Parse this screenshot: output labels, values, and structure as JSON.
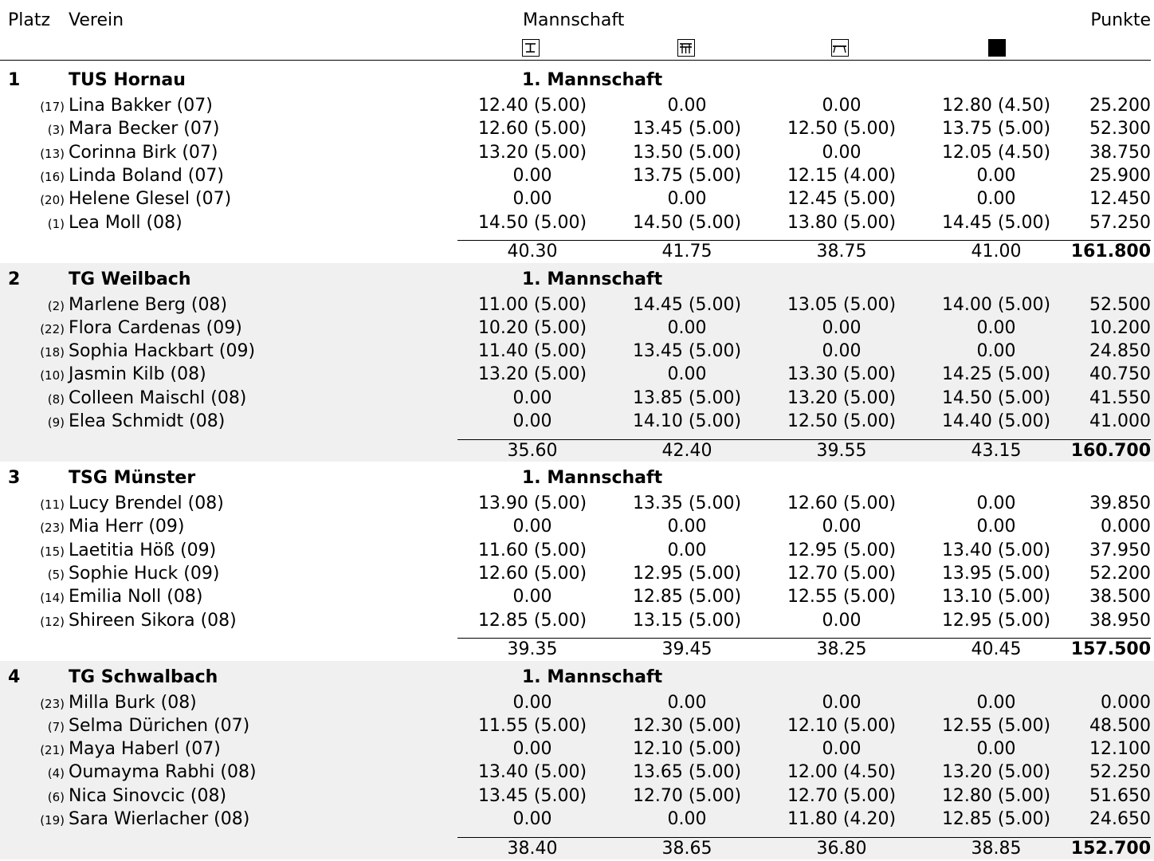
{
  "header": {
    "platz": "Platz",
    "verein": "Verein",
    "mannschaft": "Mannschaft",
    "punkte": "Punkte",
    "apparatus_icons": [
      "vault-icon",
      "bars-icon",
      "beam-icon",
      "floor-icon"
    ]
  },
  "teams": [
    {
      "place": "1",
      "club": "TUS Hornau",
      "squad": "1. Mannschaft",
      "gymnasts": [
        {
          "num": "(17)",
          "name": "Lina Bakker (07)",
          "scores": [
            "12.40 (5.00)",
            "0.00",
            "0.00",
            "12.80 (4.50)"
          ],
          "total": "25.200"
        },
        {
          "num": "(3)",
          "name": "Mara Becker (07)",
          "scores": [
            "12.60 (5.00)",
            "13.45 (5.00)",
            "12.50 (5.00)",
            "13.75 (5.00)"
          ],
          "total": "52.300"
        },
        {
          "num": "(13)",
          "name": "Corinna Birk (07)",
          "scores": [
            "13.20 (5.00)",
            "13.50 (5.00)",
            "0.00",
            "12.05 (4.50)"
          ],
          "total": "38.750"
        },
        {
          "num": "(16)",
          "name": "Linda Boland (07)",
          "scores": [
            "0.00",
            "13.75 (5.00)",
            "12.15 (4.00)",
            "0.00"
          ],
          "total": "25.900"
        },
        {
          "num": "(20)",
          "name": "Helene Glesel (07)",
          "scores": [
            "0.00",
            "0.00",
            "12.45 (5.00)",
            "0.00"
          ],
          "total": "12.450"
        },
        {
          "num": "(1)",
          "name": "Lea Moll (08)",
          "scores": [
            "14.50 (5.00)",
            "14.50 (5.00)",
            "13.80 (5.00)",
            "14.45 (5.00)"
          ],
          "total": "57.250"
        }
      ],
      "sums": [
        "40.30",
        "41.75",
        "38.75",
        "41.00"
      ],
      "total": "161.800"
    },
    {
      "place": "2",
      "club": "TG Weilbach",
      "squad": "1. Mannschaft",
      "gymnasts": [
        {
          "num": "(2)",
          "name": "Marlene Berg (08)",
          "scores": [
            "11.00 (5.00)",
            "14.45 (5.00)",
            "13.05 (5.00)",
            "14.00 (5.00)"
          ],
          "total": "52.500"
        },
        {
          "num": "(22)",
          "name": "Flora Cardenas (09)",
          "scores": [
            "10.20 (5.00)",
            "0.00",
            "0.00",
            "0.00"
          ],
          "total": "10.200"
        },
        {
          "num": "(18)",
          "name": "Sophia Hackbart (09)",
          "scores": [
            "11.40 (5.00)",
            "13.45 (5.00)",
            "0.00",
            "0.00"
          ],
          "total": "24.850"
        },
        {
          "num": "(10)",
          "name": "Jasmin Kilb (08)",
          "scores": [
            "13.20 (5.00)",
            "0.00",
            "13.30 (5.00)",
            "14.25 (5.00)"
          ],
          "total": "40.750"
        },
        {
          "num": "(8)",
          "name": "Colleen Maischl (08)",
          "scores": [
            "0.00",
            "13.85 (5.00)",
            "13.20 (5.00)",
            "14.50 (5.00)"
          ],
          "total": "41.550"
        },
        {
          "num": "(9)",
          "name": "Elea Schmidt (08)",
          "scores": [
            "0.00",
            "14.10 (5.00)",
            "12.50 (5.00)",
            "14.40 (5.00)"
          ],
          "total": "41.000"
        }
      ],
      "sums": [
        "35.60",
        "42.40",
        "39.55",
        "43.15"
      ],
      "total": "160.700"
    },
    {
      "place": "3",
      "club": "TSG Münster",
      "squad": "1. Mannschaft",
      "gymnasts": [
        {
          "num": "(11)",
          "name": "Lucy Brendel (08)",
          "scores": [
            "13.90 (5.00)",
            "13.35 (5.00)",
            "12.60 (5.00)",
            "0.00"
          ],
          "total": "39.850"
        },
        {
          "num": "(23)",
          "name": "Mia Herr (09)",
          "scores": [
            "0.00",
            "0.00",
            "0.00",
            "0.00"
          ],
          "total": "0.000"
        },
        {
          "num": "(15)",
          "name": "Laetitia Höß (09)",
          "scores": [
            "11.60 (5.00)",
            "0.00",
            "12.95 (5.00)",
            "13.40 (5.00)"
          ],
          "total": "37.950"
        },
        {
          "num": "(5)",
          "name": "Sophie Huck (09)",
          "scores": [
            "12.60 (5.00)",
            "12.95 (5.00)",
            "12.70 (5.00)",
            "13.95 (5.00)"
          ],
          "total": "52.200"
        },
        {
          "num": "(14)",
          "name": "Emilia Noll (08)",
          "scores": [
            "0.00",
            "12.85 (5.00)",
            "12.55 (5.00)",
            "13.10 (5.00)"
          ],
          "total": "38.500"
        },
        {
          "num": "(12)",
          "name": "Shireen Sikora (08)",
          "scores": [
            "12.85 (5.00)",
            "13.15 (5.00)",
            "0.00",
            "12.95 (5.00)"
          ],
          "total": "38.950"
        }
      ],
      "sums": [
        "39.35",
        "39.45",
        "38.25",
        "40.45"
      ],
      "total": "157.500"
    },
    {
      "place": "4",
      "club": "TG Schwalbach",
      "squad": "1. Mannschaft",
      "gymnasts": [
        {
          "num": "(23)",
          "name": "Milla Burk (08)",
          "scores": [
            "0.00",
            "0.00",
            "0.00",
            "0.00"
          ],
          "total": "0.000"
        },
        {
          "num": "(7)",
          "name": "Selma Dürichen (07)",
          "scores": [
            "11.55 (5.00)",
            "12.30 (5.00)",
            "12.10 (5.00)",
            "12.55 (5.00)"
          ],
          "total": "48.500"
        },
        {
          "num": "(21)",
          "name": "Maya Haberl (07)",
          "scores": [
            "0.00",
            "12.10 (5.00)",
            "0.00",
            "0.00"
          ],
          "total": "12.100"
        },
        {
          "num": "(4)",
          "name": "Oumayma Rabhi (08)",
          "scores": [
            "13.40 (5.00)",
            "13.65 (5.00)",
            "12.00 (4.50)",
            "13.20 (5.00)"
          ],
          "total": "52.250"
        },
        {
          "num": "(6)",
          "name": "Nica Sinovcic (08)",
          "scores": [
            "13.45 (5.00)",
            "12.70 (5.00)",
            "12.70 (5.00)",
            "12.80 (5.00)"
          ],
          "total": "51.650"
        },
        {
          "num": "(19)",
          "name": "Sara Wierlacher (08)",
          "scores": [
            "0.00",
            "0.00",
            "11.80 (4.20)",
            "12.85 (5.00)"
          ],
          "total": "24.650"
        }
      ],
      "sums": [
        "38.40",
        "38.65",
        "36.80",
        "38.85"
      ],
      "total": "152.700"
    }
  ]
}
